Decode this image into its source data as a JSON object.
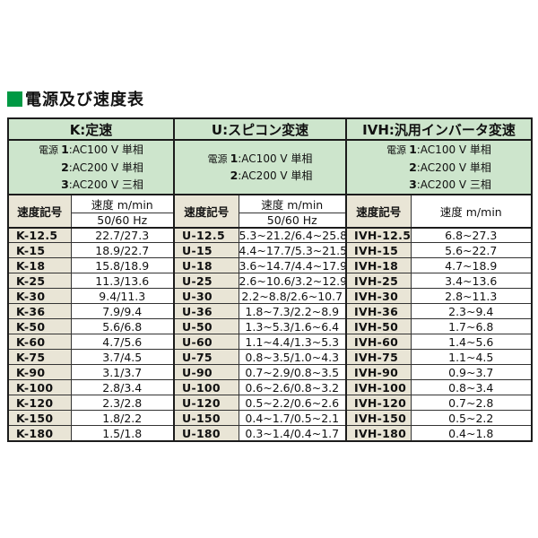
{
  "page": {
    "title": "電源及び速度表"
  },
  "colors": {
    "accent_green": "#009944",
    "header_bg": "#cde5cc",
    "symbol_col_bg": "#e9e5d6"
  },
  "table": {
    "groups": [
      {
        "header": "K:定速",
        "power_label": "電源",
        "power_lines": [
          "1:AC100 V 単相",
          "2:AC200 V 単相",
          "3:AC200 V 三相"
        ],
        "symbol_header": "速度記号",
        "speed_header": "速度 m/min",
        "hz_subheader": "50/60 Hz",
        "rows": [
          [
            "K-12.5",
            "22.7/27.3"
          ],
          [
            "K-15",
            "18.9/22.7"
          ],
          [
            "K-18",
            "15.8/18.9"
          ],
          [
            "K-25",
            "11.3/13.6"
          ],
          [
            "K-30",
            "9.4/11.3"
          ],
          [
            "K-36",
            "7.9/9.4"
          ],
          [
            "K-50",
            "5.6/6.8"
          ],
          [
            "K-60",
            "4.7/5.6"
          ],
          [
            "K-75",
            "3.7/4.5"
          ],
          [
            "K-90",
            "3.1/3.7"
          ],
          [
            "K-100",
            "2.8/3.4"
          ],
          [
            "K-120",
            "2.3/2.8"
          ],
          [
            "K-150",
            "1.8/2.2"
          ],
          [
            "K-180",
            "1.5/1.8"
          ]
        ]
      },
      {
        "header": "U:スピコン変速",
        "power_label": "電源",
        "power_lines": [
          "1:AC100 V 単相",
          "2:AC200 V 単相"
        ],
        "symbol_header": "速度記号",
        "speed_header": "速度 m/min",
        "hz_subheader": "50/60 Hz",
        "rows": [
          [
            "U-12.5",
            "5.3~21.2/6.4~25.8"
          ],
          [
            "U-15",
            "4.4~17.7/5.3~21.5"
          ],
          [
            "U-18",
            "3.6~14.7/4.4~17.9"
          ],
          [
            "U-25",
            "2.6~10.6/3.2~12.9"
          ],
          [
            "U-30",
            "2.2~8.8/2.6~10.7"
          ],
          [
            "U-36",
            "1.8~7.3/2.2~8.9"
          ],
          [
            "U-50",
            "1.3~5.3/1.6~6.4"
          ],
          [
            "U-60",
            "1.1~4.4/1.3~5.3"
          ],
          [
            "U-75",
            "0.8~3.5/1.0~4.3"
          ],
          [
            "U-90",
            "0.7~2.9/0.8~3.5"
          ],
          [
            "U-100",
            "0.6~2.6/0.8~3.2"
          ],
          [
            "U-120",
            "0.5~2.2/0.6~2.6"
          ],
          [
            "U-150",
            "0.4~1.7/0.5~2.1"
          ],
          [
            "U-180",
            "0.3~1.4/0.4~1.7"
          ]
        ]
      },
      {
        "header": "IVH:汎用インバータ変速",
        "power_label": "電源",
        "power_lines": [
          "1:AC100 V 単相",
          "2:AC200 V 単相",
          "3:AC200 V 三相"
        ],
        "symbol_header": "速度記号",
        "speed_header": "速度 m/min",
        "rows": [
          [
            "IVH-12.5",
            "6.8~27.3"
          ],
          [
            "IVH-15",
            "5.6~22.7"
          ],
          [
            "IVH-18",
            "4.7~18.9"
          ],
          [
            "IVH-25",
            "3.4~13.6"
          ],
          [
            "IVH-30",
            "2.8~11.3"
          ],
          [
            "IVH-36",
            "2.3~9.4"
          ],
          [
            "IVH-50",
            "1.7~6.8"
          ],
          [
            "IVH-60",
            "1.4~5.6"
          ],
          [
            "IVH-75",
            "1.1~4.5"
          ],
          [
            "IVH-90",
            "0.9~3.7"
          ],
          [
            "IVH-100",
            "0.8~3.4"
          ],
          [
            "IVH-120",
            "0.7~2.8"
          ],
          [
            "IVH-150",
            "0.5~2.2"
          ],
          [
            "IVH-180",
            "0.4~1.8"
          ]
        ]
      }
    ]
  }
}
